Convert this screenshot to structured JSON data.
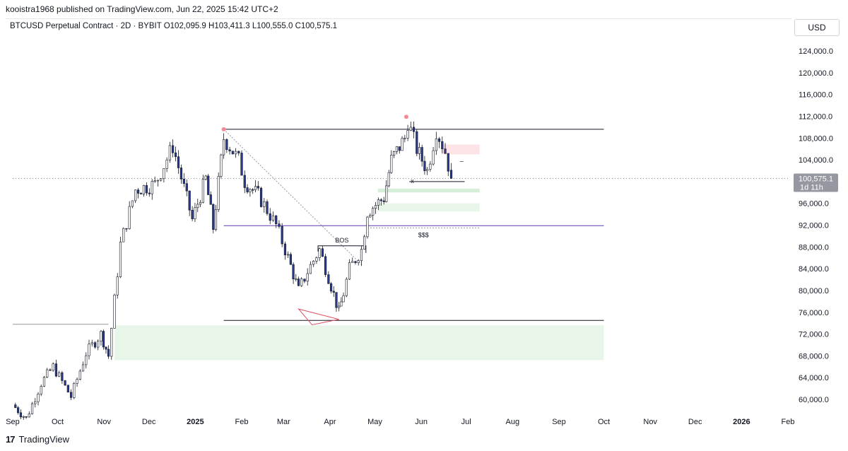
{
  "header": {
    "publish_line": "kooistra1968 published on TradingView.com, Jun 22, 2025 15:42 UTC+2",
    "symbol_line": "BTCUSD Perpetual Contract · 2D · BYBIT  O102,095.9  H103,411.3  L100,555.0  C100,575.1",
    "currency": "USD"
  },
  "footer": {
    "brand": "TradingView",
    "logo_glyph": "17"
  },
  "colors": {
    "up": "#ffffff",
    "down": "#2a3a8f",
    "wick": "#131722",
    "bos_ray": "#131722",
    "purple_line": "#5b3bb0",
    "demand_zone": "#e8f5e9",
    "supply_zone": "#fde3e6"
  },
  "chart_data": {
    "type": "candlestick",
    "timeframe": "2D",
    "yscale": "linear",
    "ylim": [
      57500,
      127000
    ],
    "y_ticks": [
      124000,
      120000,
      116000,
      112000,
      108000,
      104000,
      100000,
      96000,
      92000,
      88000,
      84000,
      80000,
      76000,
      72000,
      68000,
      64000,
      60000
    ],
    "y_tick_labels": [
      "124,000.0",
      "120,000.0",
      "116,000.0",
      "112,000.0",
      "108,000.0",
      "104,000.0",
      "100,000.0",
      "96,000.0",
      "92,000.0",
      "88,000.0",
      "84,000.0",
      "80,000.0",
      "76,000.0",
      "72,000.0",
      "68,000.0",
      "64,000.0",
      "60,000.0"
    ],
    "x_start": "2024-09-01",
    "x_end": "2026-02-01",
    "x_tick_dates": [
      "2024-09-01",
      "2024-10-01",
      "2024-11-01",
      "2024-12-01",
      "2025-01-01",
      "2025-02-01",
      "2025-03-01",
      "2025-04-01",
      "2025-05-01",
      "2025-06-01",
      "2025-07-01",
      "2025-08-01",
      "2025-09-01",
      "2025-10-01",
      "2025-11-01",
      "2025-12-01",
      "2026-01-01",
      "2026-02-01"
    ],
    "x_tick_labels": [
      "Sep",
      "Oct",
      "Nov",
      "Dec",
      "2025",
      "Feb",
      "Mar",
      "Apr",
      "May",
      "Jun",
      "Jul",
      "Aug",
      "Sep",
      "Oct",
      "Nov",
      "Dec",
      "2026",
      "Feb"
    ],
    "grid": false,
    "last_price": {
      "value": 100575.1,
      "label": "100,575.1",
      "countdown": "1d 11h"
    },
    "ohlc_last": {
      "open": 102095.9,
      "high": 103411.3,
      "low": 100555.0,
      "close": 100575.1
    },
    "path": [
      [
        "2024-09-01",
        59000
      ],
      [
        "2024-09-10",
        56500
      ],
      [
        "2024-09-20",
        63000
      ],
      [
        "2024-09-28",
        66000
      ],
      [
        "2024-10-10",
        60500
      ],
      [
        "2024-10-20",
        68500
      ],
      [
        "2024-10-30",
        72000
      ],
      [
        "2024-11-04",
        68000
      ],
      [
        "2024-11-12",
        88500
      ],
      [
        "2024-11-22",
        98500
      ],
      [
        "2024-12-05",
        99500
      ],
      [
        "2024-12-17",
        106500
      ],
      [
        "2024-12-30",
        93000
      ],
      [
        "2025-01-08",
        100500
      ],
      [
        "2025-01-13",
        91500
      ],
      [
        "2025-01-20",
        108000
      ],
      [
        "2025-01-30",
        104000
      ],
      [
        "2025-02-03",
        100000
      ],
      [
        "2025-02-12",
        97500
      ],
      [
        "2025-02-24",
        92000
      ],
      [
        "2025-03-04",
        86000
      ],
      [
        "2025-03-11",
        80000
      ],
      [
        "2025-03-17",
        83500
      ],
      [
        "2025-03-25",
        87500
      ],
      [
        "2025-03-31",
        82500
      ],
      [
        "2025-04-07",
        76000
      ],
      [
        "2025-04-10",
        79500
      ],
      [
        "2025-04-14",
        84000
      ],
      [
        "2025-04-22",
        87500
      ],
      [
        "2025-04-26",
        94500
      ],
      [
        "2025-05-07",
        97000
      ],
      [
        "2025-05-12",
        104000
      ],
      [
        "2025-05-21",
        108000
      ],
      [
        "2025-05-23",
        111000
      ],
      [
        "2025-05-29",
        106000
      ],
      [
        "2025-06-05",
        102000
      ],
      [
        "2025-06-11",
        109500
      ],
      [
        "2025-06-17",
        105500
      ],
      [
        "2025-06-21",
        100575
      ]
    ],
    "candle_seed": 7,
    "annotations": {
      "top_resistance": {
        "price": 109600,
        "from": "2025-01-20",
        "to": "2025-10-01"
      },
      "ath_marker": {
        "date": "2025-05-22",
        "price": 111900
      },
      "jan_high_marker": {
        "date": "2025-01-20",
        "price": 109600
      },
      "purple_line": {
        "price": 91900,
        "from": "2025-01-20",
        "to": "2025-10-01"
      },
      "bottom_line": {
        "price": 74500,
        "from": "2025-01-20",
        "to": "2025-10-01"
      },
      "left_gray_line": {
        "price": 73800,
        "from": "2024-09-01",
        "to": "2024-11-04"
      },
      "demand_zone_big": {
        "low": 67200,
        "high": 73600,
        "from": "2024-11-08",
        "to": "2025-10-01"
      },
      "demand_zone_1": {
        "low": 98000,
        "high": 98700,
        "from": "2025-05-03",
        "to": "2025-07-10"
      },
      "demand_zone_2": {
        "low": 94500,
        "high": 96000,
        "from": "2025-05-03",
        "to": "2025-07-10"
      },
      "supply_zone": {
        "low": 105000,
        "high": 106800,
        "from": "2025-06-15",
        "to": "2025-07-10"
      },
      "bos": {
        "label": "BOS",
        "price": 88200,
        "from": "2025-03-24",
        "to": "2025-04-25"
      },
      "sss": {
        "label": "$$$",
        "price": 91500,
        "from": "2025-04-26",
        "to": "2025-07-10"
      },
      "x_mark": {
        "label": "x",
        "date": "2025-05-26",
        "price": 100100
      },
      "dash_mark": {
        "label": "–",
        "date": "2025-06-28",
        "price": 103800
      },
      "low_line": {
        "price": 100000,
        "from": "2025-05-24",
        "to": "2025-06-30"
      },
      "dotted_diag": {
        "from": [
          "2025-01-20",
          109600
        ],
        "to": [
          "2025-04-23",
          84500
        ]
      },
      "red_divergence": [
        [
          "2025-03-11",
          76600
        ],
        [
          "2025-04-07",
          74700
        ],
        [
          "2025-03-20",
          73700
        ]
      ]
    }
  }
}
